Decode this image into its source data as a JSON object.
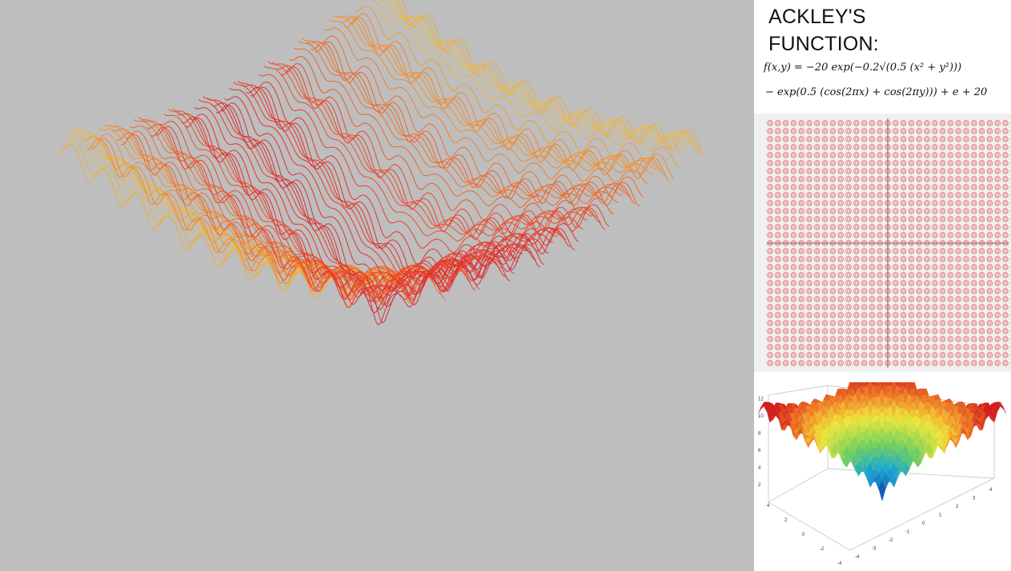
{
  "title_line1": "ACKLEY'S",
  "title_line2": "FUNCTION:",
  "formula_line1": "f(x,y) = −20 exp(−0.2√(0.5 (x² + y²)))",
  "formula_line2": "− exp(0.5 (cos(2πx) + cos(2πy))) + e + 20",
  "colors": {
    "main_background": "#bebebe",
    "contour_color": "#e23030",
    "mesh_low": "#3f3fb0",
    "mesh_mid": "#e8312a",
    "mesh_high": "#f5ee38"
  },
  "surface_plot": {
    "z_ticks": [
      "2",
      "4",
      "6",
      "8",
      "10",
      "12"
    ],
    "x_ticks": [
      "-4",
      "-3",
      "-2",
      "-1",
      "0",
      "1",
      "2",
      "3",
      "4"
    ],
    "y_ticks": [
      "-4",
      "-2",
      "0",
      "2",
      "4"
    ]
  }
}
